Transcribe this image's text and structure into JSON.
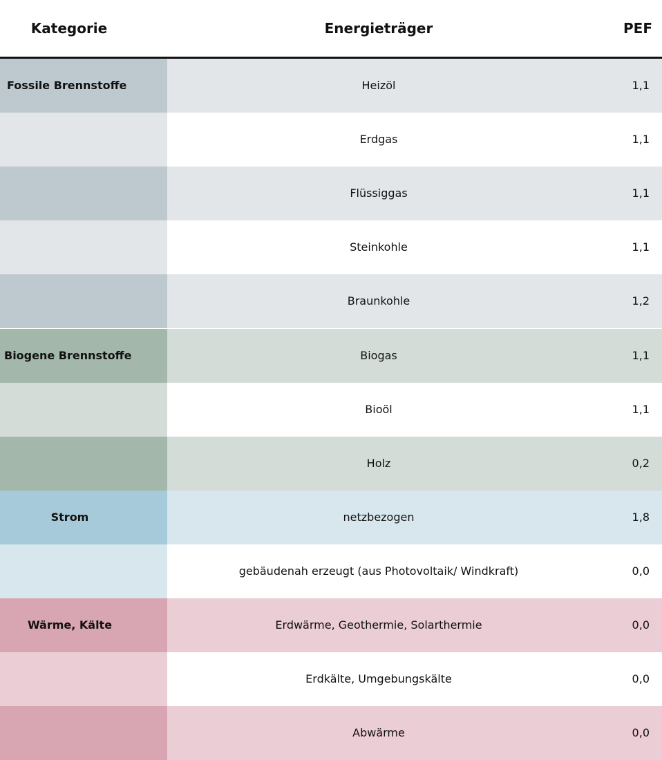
{
  "header": {
    "category": "Kategorie",
    "carrier": "Energieträger",
    "pef": "PEF"
  },
  "table": {
    "rows": [
      {
        "category": "Fossile Brennstoffe",
        "carrier": "Heizöl",
        "pef": "1,1"
      },
      {
        "carrier": "Erdgas",
        "pef": "1,1"
      },
      {
        "carrier": "Flüssiggas",
        "pef": "1,1"
      },
      {
        "carrier": "Steinkohle",
        "pef": "1,1"
      },
      {
        "carrier": "Braunkohle",
        "pef": "1,2"
      },
      {
        "category": "Biogene Brennstoffe",
        "carrier": "Biogas",
        "pef": "1,1"
      },
      {
        "carrier": "Bioöl",
        "pef": "1,1"
      },
      {
        "carrier": "Holz",
        "pef": "0,2"
      },
      {
        "category": "Strom",
        "carrier": "netzbezogen",
        "pef": "1,8"
      },
      {
        "carrier": "gebäudenah erzeugt (aus Photovoltaik/ Windkraft)",
        "pef": "0,0"
      },
      {
        "category": "Wärme, Kälte",
        "carrier": "Erdwärme, Geothermie, Solarthermie",
        "pef": "0,0"
      },
      {
        "carrier": "Erdkälte, Umgebungskälte",
        "pef": "0,0"
      },
      {
        "carrier": "Abwärme",
        "pef": "0,0"
      }
    ]
  }
}
